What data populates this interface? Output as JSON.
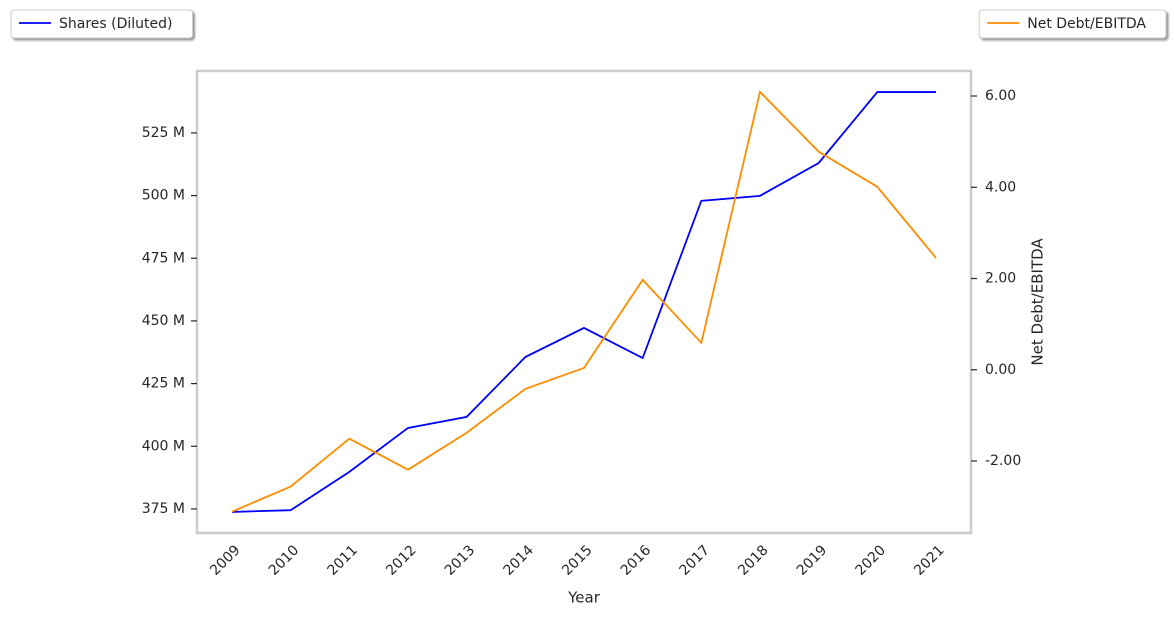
{
  "chart_data": {
    "type": "line",
    "xlabel": "Year",
    "y2label": "Net Debt/EBITDA",
    "categories": [
      "2009",
      "2010",
      "2011",
      "2012",
      "2013",
      "2014",
      "2015",
      "2016",
      "2017",
      "2018",
      "2019",
      "2020",
      "2021"
    ],
    "series": [
      {
        "name": "Shares (Diluted)",
        "color": "#0000ff",
        "axis": "y",
        "legend": "upper left",
        "values": [
          373800000,
          374500000,
          389800000,
          407300000,
          411700000,
          435600000,
          447200000,
          435200000,
          497900000,
          499900000,
          513000000,
          541300000,
          541300000
        ]
      },
      {
        "name": "Net Debt/EBITDA",
        "color": "#ff8c00",
        "axis": "y2",
        "legend": "upper right",
        "values": [
          -3.11,
          -2.56,
          -1.51,
          -2.19,
          -1.38,
          -0.42,
          0.04,
          1.97,
          0.59,
          6.09,
          4.78,
          4.01,
          2.45
        ]
      }
    ],
    "ylim": [
      365400000,
      549700000
    ],
    "yticks": [
      {
        "value": 375000000,
        "label": "375 M"
      },
      {
        "value": 400000000,
        "label": "400 M"
      },
      {
        "value": 425000000,
        "label": "425 M"
      },
      {
        "value": 450000000,
        "label": "450 M"
      },
      {
        "value": 475000000,
        "label": "475 M"
      },
      {
        "value": 500000000,
        "label": "500 M"
      },
      {
        "value": 525000000,
        "label": "525 M"
      }
    ],
    "y2lim": [
      -3.578,
      6.548
    ],
    "y2ticks": [
      {
        "value": -2,
        "label": "-2.00"
      },
      {
        "value": 0,
        "label": "0.00"
      },
      {
        "value": 2,
        "label": "2.00"
      },
      {
        "value": 4,
        "label": "4.00"
      },
      {
        "value": 6,
        "label": "6.00"
      }
    ]
  }
}
